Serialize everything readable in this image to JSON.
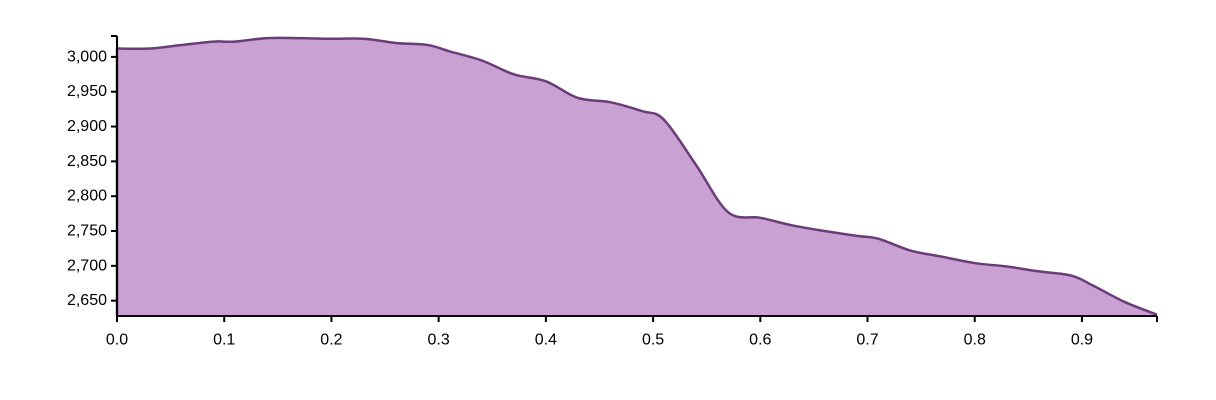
{
  "chart_data": {
    "type": "area",
    "title": "",
    "xlabel": "",
    "ylabel": "",
    "xlim": [
      0,
      0.97
    ],
    "ylim": [
      2628,
      3030
    ],
    "grid": false,
    "x_ticks": [
      0.0,
      0.1,
      0.2,
      0.3,
      0.4,
      0.5,
      0.6,
      0.7,
      0.8,
      0.9
    ],
    "x_tick_labels": [
      "0.0",
      "0.1",
      "0.2",
      "0.3",
      "0.4",
      "0.5",
      "0.6",
      "0.7",
      "0.8",
      "0.9"
    ],
    "y_ticks": [
      2650,
      2700,
      2750,
      2800,
      2850,
      2900,
      2950,
      3000
    ],
    "y_tick_labels": [
      "2,650",
      "2,700",
      "2,750",
      "2,800",
      "2,850",
      "2,900",
      "2,950",
      "3,000"
    ],
    "colors": {
      "fill": "#c9a1d2",
      "stroke": "#6b3b7a"
    },
    "series": [
      {
        "x": [
          0.0,
          0.03,
          0.06,
          0.09,
          0.11,
          0.14,
          0.17,
          0.2,
          0.23,
          0.26,
          0.29,
          0.31,
          0.34,
          0.37,
          0.4,
          0.43,
          0.46,
          0.49,
          0.51,
          0.54,
          0.57,
          0.6,
          0.63,
          0.66,
          0.69,
          0.71,
          0.74,
          0.77,
          0.8,
          0.83,
          0.86,
          0.89,
          0.91,
          0.94,
          0.97
        ],
        "y": [
          3012,
          3012,
          3017,
          3022,
          3022,
          3027,
          3027,
          3026,
          3026,
          3020,
          3017,
          3008,
          2995,
          2975,
          2965,
          2941,
          2935,
          2922,
          2910,
          2845,
          2777,
          2769,
          2758,
          2750,
          2743,
          2739,
          2722,
          2713,
          2704,
          2699,
          2692,
          2686,
          2672,
          2648,
          2630
        ]
      }
    ]
  }
}
